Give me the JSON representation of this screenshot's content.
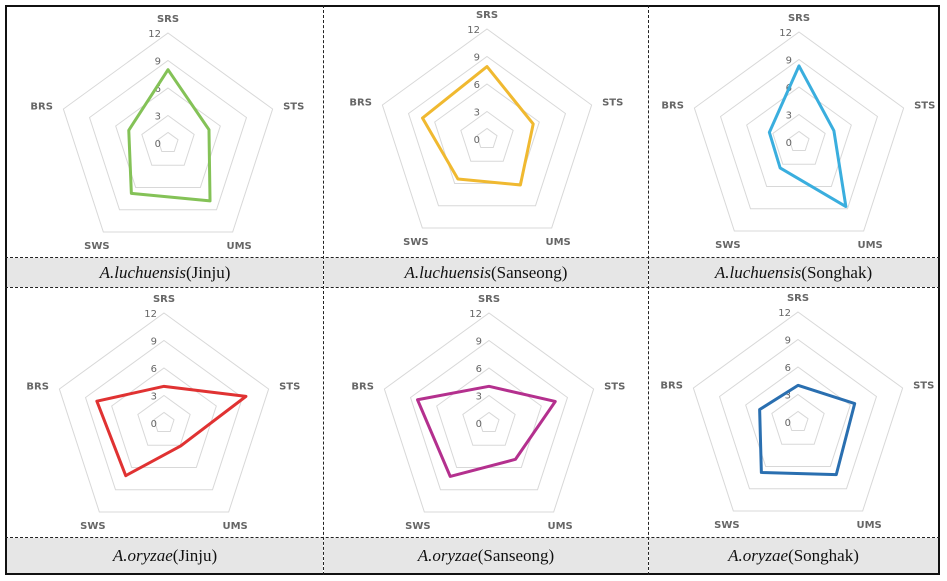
{
  "chart_data": [
    {
      "type": "radar",
      "axes": [
        "SRS",
        "STS",
        "UMS",
        "SWS",
        "BRS"
      ],
      "ticks": [
        0,
        3,
        6,
        9,
        12
      ],
      "range": [
        0,
        12
      ],
      "grid": true,
      "caption": {
        "species": "A.luchuensis",
        "site": "(Jinju)"
      },
      "color": "#84c257",
      "values": [
        8.0,
        4.7,
        7.8,
        6.8,
        4.5
      ]
    },
    {
      "type": "radar",
      "axes": [
        "SRS",
        "STS",
        "UMS",
        "SWS",
        "BRS"
      ],
      "ticks": [
        0,
        3,
        6,
        9,
        12
      ],
      "range": [
        0,
        12
      ],
      "grid": true,
      "caption": {
        "species": "A.luchuensis",
        "site": "(Sanseong)"
      },
      "color": "#f0b930",
      "values": [
        7.9,
        5.3,
        6.2,
        5.4,
        7.4
      ]
    },
    {
      "type": "radar",
      "axes": [
        "SRS",
        "STS",
        "UMS",
        "SWS",
        "BRS"
      ],
      "ticks": [
        0,
        3,
        6,
        9,
        12
      ],
      "range": [
        0,
        12
      ],
      "grid": true,
      "caption": {
        "species": "A.luchuensis",
        "site": "(Songhak)"
      },
      "color": "#3aaede",
      "values": [
        8.3,
        4.0,
        8.7,
        3.5,
        3.4
      ]
    },
    {
      "type": "radar",
      "axes": [
        "SRS",
        "STS",
        "UMS",
        "SWS",
        "BRS"
      ],
      "ticks": [
        0,
        3,
        6,
        9,
        12
      ],
      "range": [
        0,
        12
      ],
      "grid": true,
      "caption": {
        "species": "A.oryzae",
        "site": "(Jinju)"
      },
      "color": "#e03232",
      "values": [
        4.0,
        9.4,
        3.1,
        7.1,
        7.7
      ]
    },
    {
      "type": "radar",
      "axes": [
        "SRS",
        "STS",
        "UMS",
        "SWS",
        "BRS"
      ],
      "ticks": [
        0,
        3,
        6,
        9,
        12
      ],
      "range": [
        0,
        12
      ],
      "grid": true,
      "caption": {
        "species": "A.oryzae",
        "site": "(Sanseong)"
      },
      "color": "#b4308e",
      "values": [
        4.0,
        7.6,
        4.9,
        7.2,
        8.2
      ]
    },
    {
      "type": "radar",
      "axes": [
        "SRS",
        "STS",
        "UMS",
        "SWS",
        "BRS"
      ],
      "ticks": [
        0,
        3,
        6,
        9,
        12
      ],
      "range": [
        0,
        12
      ],
      "grid": true,
      "caption": {
        "species": "A.oryzae",
        "site": "(Songhak)"
      },
      "color": "#2a6fb0",
      "values": [
        4.0,
        6.5,
        7.1,
        6.8,
        4.4
      ]
    }
  ]
}
